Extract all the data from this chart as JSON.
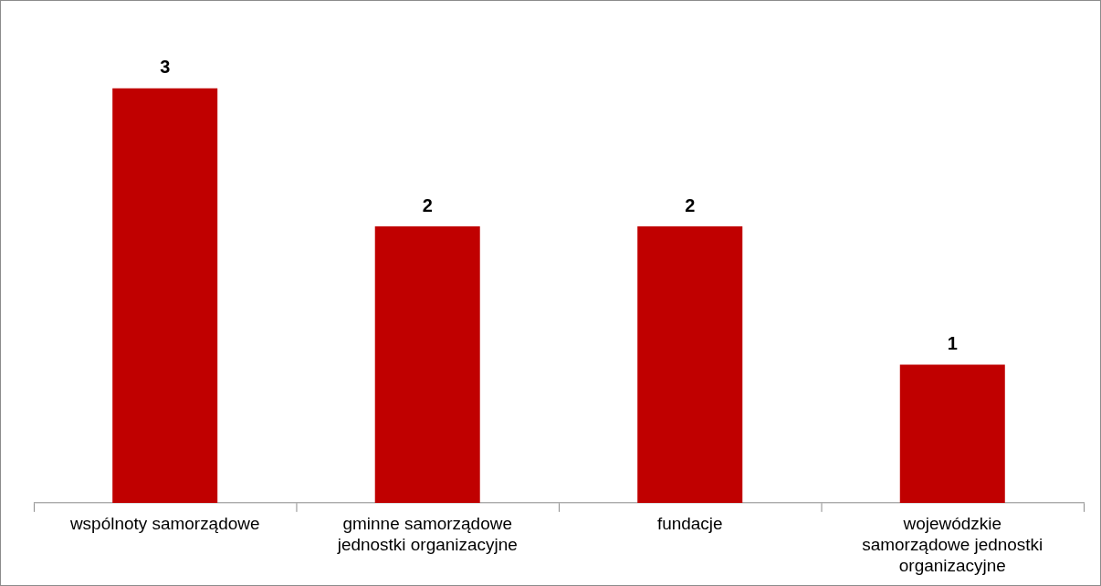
{
  "chart_data": {
    "type": "bar",
    "categories": [
      "wspólnoty samorządowe",
      "gminne samorządowe\njednostki organizacyjne",
      "fundacje",
      "wojewódzkie\nsamorządowe jednostki\norganizacyjne"
    ],
    "values": [
      3,
      2,
      2,
      1
    ],
    "color": "#c00000",
    "tick_labels": "x",
    "data_labels": true,
    "grid": false,
    "legend": false
  }
}
